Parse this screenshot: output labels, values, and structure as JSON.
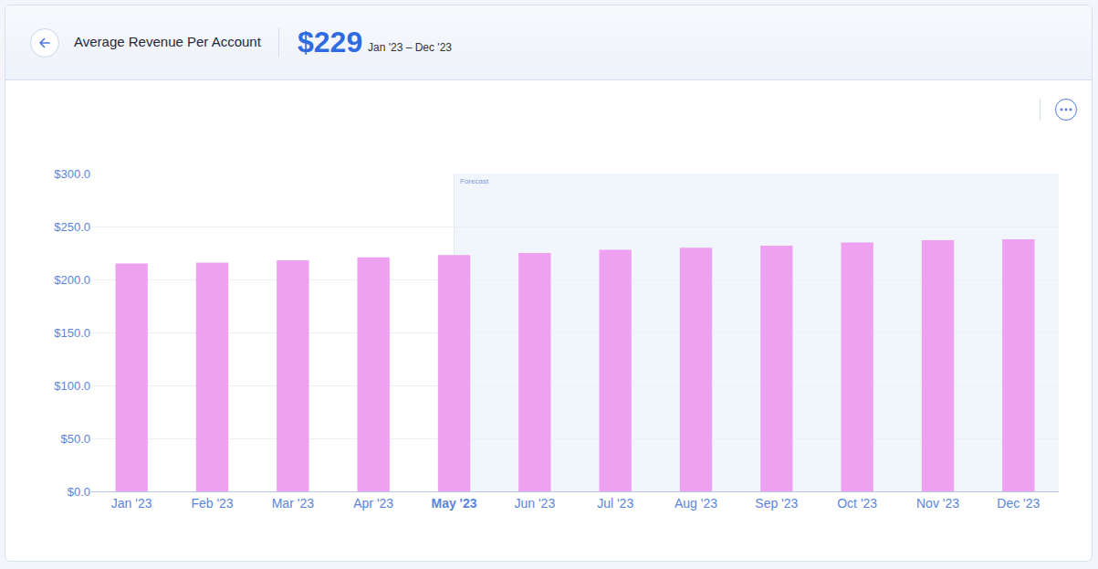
{
  "chart_data": {
    "type": "bar",
    "title": "Average Revenue Per Account",
    "headline_value": "$229",
    "period": "Jan '23 – Dec '23",
    "categories": [
      "Jan '23",
      "Feb '23",
      "Mar '23",
      "Apr '23",
      "May '23",
      "Jun '23",
      "Jul '23",
      "Aug '23",
      "Sep '23",
      "Oct '23",
      "Nov '23",
      "Dec '23"
    ],
    "values": [
      215,
      216,
      218,
      221,
      223,
      225,
      228,
      230,
      232,
      235,
      237,
      238
    ],
    "color": "#eda1f0",
    "ylim": [
      0,
      300
    ],
    "yticks": [
      {
        "value": 0,
        "label": "$0.0"
      },
      {
        "value": 50,
        "label": "$50.0"
      },
      {
        "value": 100,
        "label": "$100.0"
      },
      {
        "value": 150,
        "label": "$150.0"
      },
      {
        "value": 200,
        "label": "$200.0"
      },
      {
        "value": 250,
        "label": "$250.0"
      },
      {
        "value": 300,
        "label": "$300.0"
      }
    ],
    "grid": true,
    "annotations": [
      {
        "text": "Forecast",
        "x": "May '23"
      }
    ]
  }
}
